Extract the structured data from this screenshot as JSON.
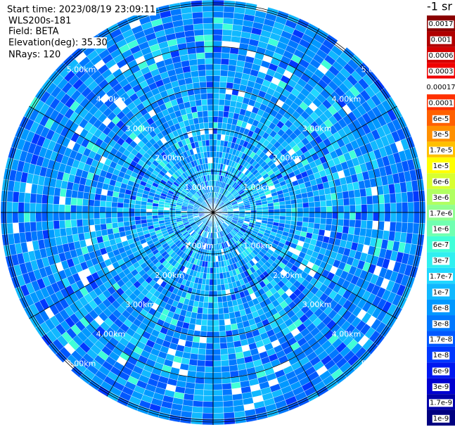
{
  "header": {
    "start_time": "Start time: 2023/08/19 23:09:11",
    "instrument": "WLS200s-181",
    "field": "Field: BETA",
    "elevation": "Elevation(deg): 35.30",
    "nrays": "NRays: 120"
  },
  "range_rings": [
    "1.00km",
    "2.00km",
    "3.00km",
    "4.00km",
    "5.00km"
  ],
  "colorbar": {
    "unit": "-1 sr",
    "labels": [
      "0.0017",
      "0.001",
      "0.0006",
      "0.0003",
      "0.00017",
      "0.0001",
      "6e-5",
      "3e-5",
      "1.7e-5",
      "1e-5",
      "6e-6",
      "3e-6",
      "1.7e-6",
      "1e-6",
      "6e-7",
      "3e-7",
      "1.7e-7",
      "1e-7",
      "6e-8",
      "3e-8",
      "1.7e-8",
      "1e-8",
      "6e-9",
      "3e-9",
      "1.7e-9",
      "1e-9"
    ],
    "colors": [
      "#8b0000",
      "#b00000",
      "#d40000",
      "#f00000",
      "#ffffff",
      "#ff3000",
      "#ff6000",
      "#ff9000",
      "#ffc000",
      "#ffff00",
      "#d8ff30",
      "#b0ff60",
      "#90ff90",
      "#70ffb0",
      "#40ffd8",
      "#30f0f0",
      "#20d8ff",
      "#10b8ff",
      "#0098ff",
      "#0078ff",
      "#0058ff",
      "#0038ff",
      "#0018f0",
      "#0000d0",
      "#0000a8",
      "#000080"
    ]
  }
}
